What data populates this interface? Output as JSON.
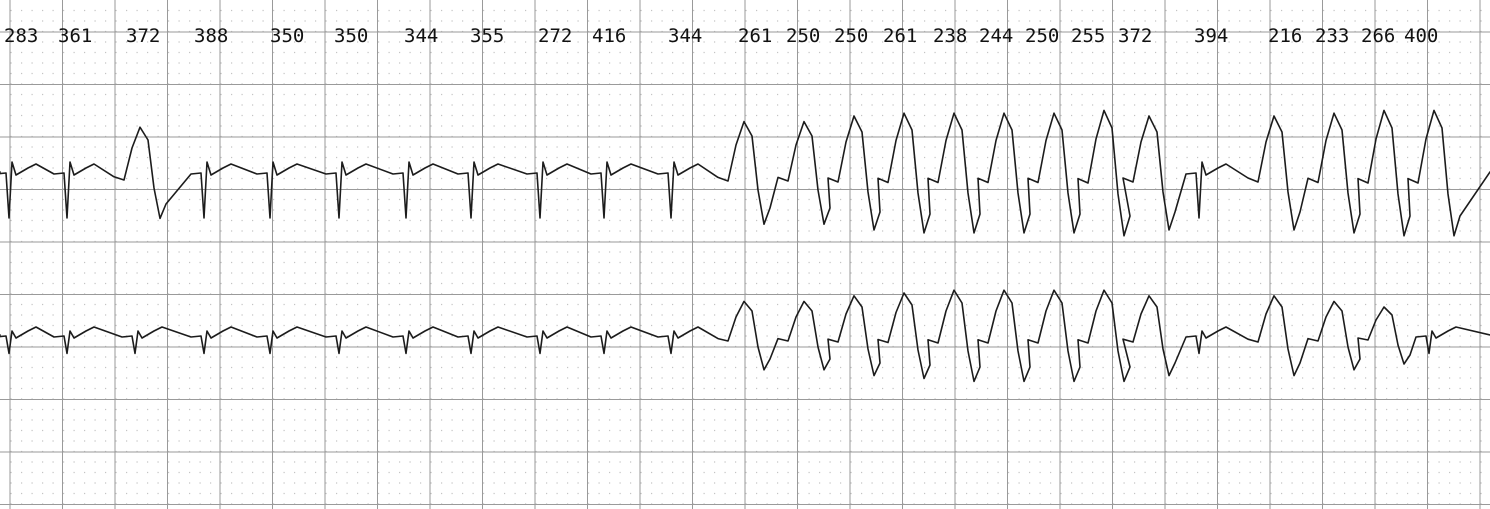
{
  "colors": {
    "paper": "#ffffff",
    "grid_major": "#9a9a9a",
    "grid_minor": "#c4c4c4",
    "trace": "#1c1c1c",
    "label": "#111111"
  },
  "intervals": [
    "283",
    "361",
    "372",
    "388",
    "350",
    "350",
    "344",
    "355",
    "272",
    "416",
    "344",
    "261",
    "250",
    "250",
    "261",
    "238",
    "244",
    "250",
    "255",
    "372",
    "394",
    "216",
    "233",
    "266",
    "400"
  ],
  "leads": [
    "upper-trace",
    "lower-trace"
  ]
}
